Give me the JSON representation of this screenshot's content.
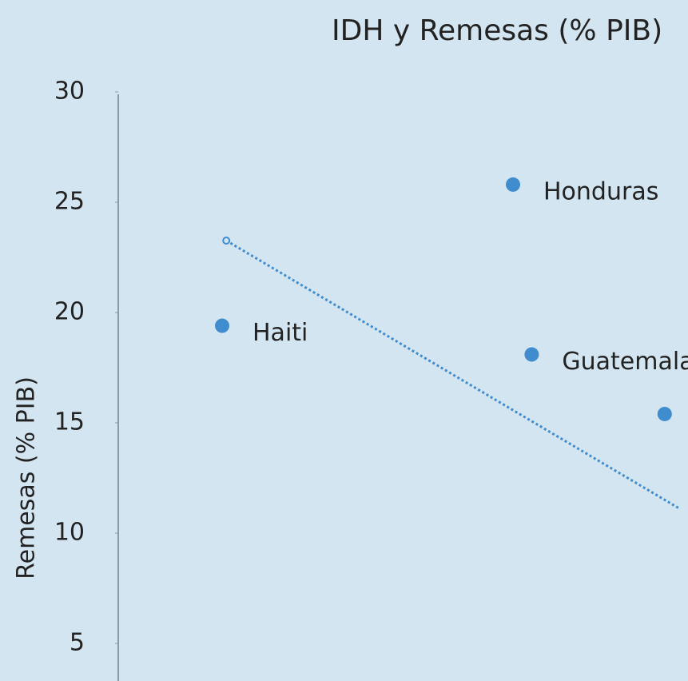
{
  "chart_data": {
    "type": "scatter",
    "title": "IDH y Remesas (% PIB)",
    "y_label": "Remesas (% PIB)",
    "x": [
      0.47,
      0.61,
      0.619,
      0.683
    ],
    "values": [
      19.4,
      25.8,
      18.1,
      15.4
    ],
    "labels": [
      "Haiti",
      "Honduras",
      "Guatemala",
      null
    ],
    "color": "#3f8ccf",
    "trendline": {
      "x": [
        0.472,
        0.69
      ],
      "values": [
        23.26,
        11.12
      ],
      "style": "dotted"
    },
    "xlim": [
      0.42,
      0.75
    ],
    "ylim": [
      0,
      30
    ],
    "yticks": [
      5,
      10,
      15,
      20,
      25,
      30
    ]
  }
}
